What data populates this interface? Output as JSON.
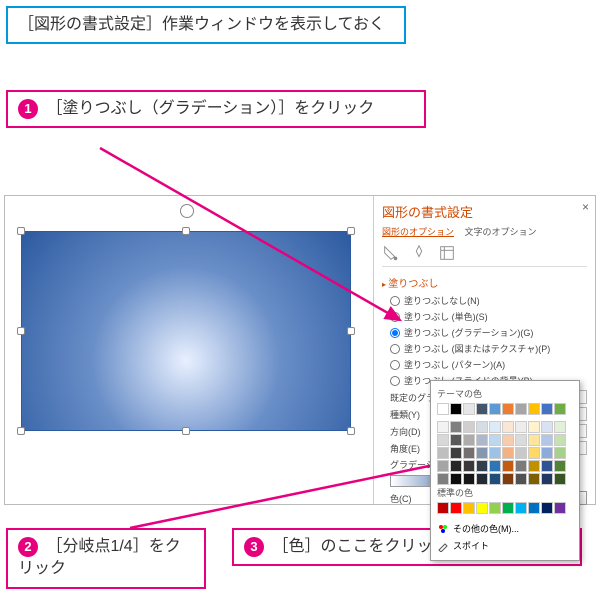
{
  "callouts": {
    "intro": "［図形の書式設定］作業ウィンドウを表示しておく",
    "step1": "［塗りつぶし（グラデーション）］をクリック",
    "step2": "［分岐点1/4］をクリック",
    "step3": "［色］のここをクリックして色を選択",
    "badge1": "1",
    "badge2": "2",
    "badge3": "3"
  },
  "panel": {
    "title": "図形の書式設定",
    "tab_shape": "図形のオプション",
    "tab_text": "文字のオプション",
    "section_fill": "塗りつぶし",
    "radios": {
      "none": "塗りつぶしなし(N)",
      "solid": "塗りつぶし (単色)(S)",
      "gradient": "塗りつぶし (グラデーション)(G)",
      "picture": "塗りつぶし (図またはテクスチャ)(P)",
      "pattern": "塗りつぶし (パターン)(A)",
      "slide": "塗りつぶし (スライドの背景)(B)"
    },
    "fields": {
      "preset": "既定のグラデ",
      "type": "種類(Y)",
      "direction": "方向(D)",
      "angle": "角度(E)",
      "stops": "グラデーション",
      "color": "色(C)"
    }
  },
  "popup": {
    "theme_label": "テーマの色",
    "standard_label": "標準の色",
    "more_colors": "その他の色(M)...",
    "eyedropper": "スポイト",
    "theme_colors_row1": [
      "#ffffff",
      "#000000",
      "#e7e6e6",
      "#44546a",
      "#5b9bd5",
      "#ed7d31",
      "#a5a5a5",
      "#ffc000",
      "#4472c4",
      "#70ad47"
    ],
    "theme_shades": [
      [
        "#f2f2f2",
        "#7f7f7f",
        "#d0cece",
        "#d6dce4",
        "#deebf6",
        "#fbe5d5",
        "#ededed",
        "#fff2cc",
        "#d9e2f3",
        "#e2efd9"
      ],
      [
        "#d8d8d8",
        "#595959",
        "#aeabab",
        "#adb9ca",
        "#bdd7ee",
        "#f7cbac",
        "#dbdbdb",
        "#fee599",
        "#b4c6e7",
        "#c5e0b3"
      ],
      [
        "#bfbfbf",
        "#3f3f3f",
        "#757070",
        "#8496b0",
        "#9cc3e5",
        "#f4b183",
        "#c9c9c9",
        "#ffd965",
        "#8eaadb",
        "#a8d08d"
      ],
      [
        "#a5a5a5",
        "#262626",
        "#3a3838",
        "#323f4f",
        "#2e75b5",
        "#c55a11",
        "#7b7b7b",
        "#bf9000",
        "#2f5496",
        "#538135"
      ],
      [
        "#7f7f7f",
        "#0c0c0c",
        "#171616",
        "#222a35",
        "#1e4e79",
        "#833c0b",
        "#525252",
        "#7f6000",
        "#1f3864",
        "#375623"
      ]
    ],
    "standard_colors": [
      "#c00000",
      "#ff0000",
      "#ffc000",
      "#ffff00",
      "#92d050",
      "#00b050",
      "#00b0f0",
      "#0070c0",
      "#002060",
      "#7030a0"
    ]
  },
  "colors": {
    "pink": "#e6007e",
    "blue": "#0099dd"
  }
}
